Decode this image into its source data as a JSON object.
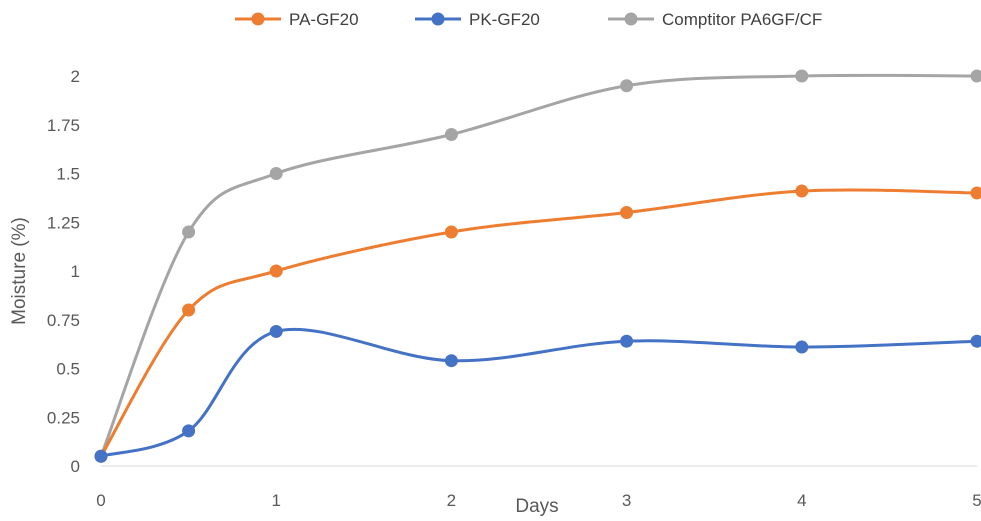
{
  "chart_data": {
    "type": "line",
    "smooth": true,
    "xlabel": "Days",
    "ylabel": "Moisture (%)",
    "xlim": [
      0,
      5
    ],
    "ylim": [
      0,
      2
    ],
    "x_ticks": [
      "0",
      "1",
      "2",
      "3",
      "4",
      "5"
    ],
    "y_ticks": [
      "0",
      "0.25",
      "0.5",
      "0.75",
      "1",
      "1.25",
      "1.5",
      "1.75",
      "2"
    ],
    "grid": false,
    "legend_position": "top",
    "series": [
      {
        "name": "PA-GF20",
        "color": "#ED7D31",
        "x": [
          0,
          0.5,
          1,
          2,
          3,
          4,
          5
        ],
        "y": [
          0.05,
          0.8,
          1.0,
          1.2,
          1.3,
          1.41,
          1.4
        ]
      },
      {
        "name": "PK-GF20",
        "color": "#4472C4",
        "x": [
          0,
          0.5,
          1,
          2,
          3,
          4,
          5
        ],
        "y": [
          0.05,
          0.18,
          0.69,
          0.54,
          0.64,
          0.61,
          0.64
        ]
      },
      {
        "name": "Comptitor PA6GF/CF",
        "color": "#A5A5A5",
        "x": [
          0,
          0.5,
          1,
          2,
          3,
          4,
          5
        ],
        "y": [
          0.05,
          1.2,
          1.5,
          1.7,
          1.95,
          2.0,
          2.0
        ]
      }
    ]
  }
}
